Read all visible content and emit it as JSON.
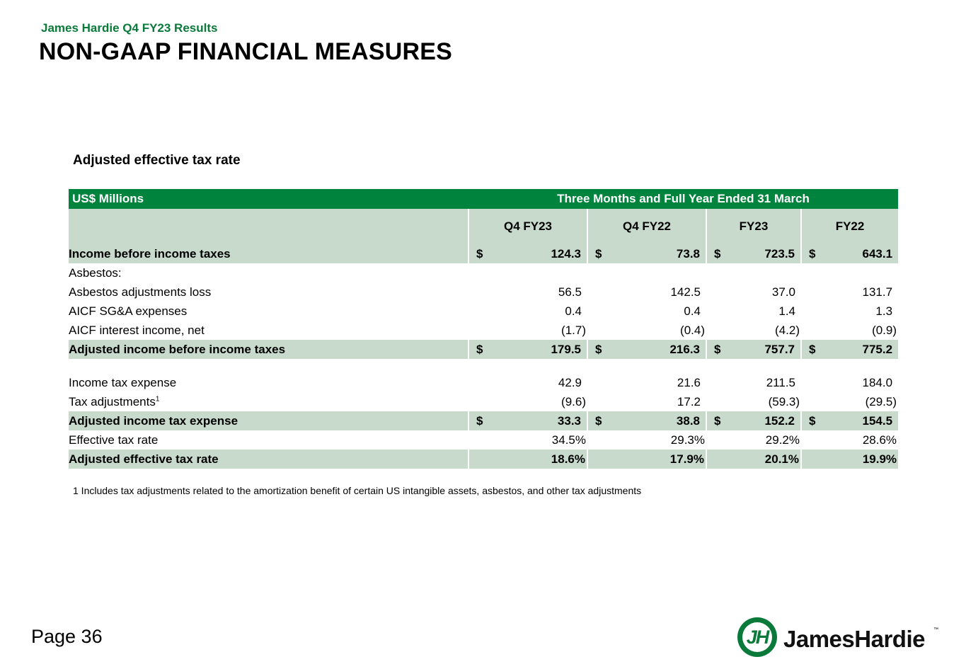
{
  "header": {
    "kicker": "James Hardie Q4 FY23 Results",
    "title": "NON-GAAP FINANCIAL MEASURES"
  },
  "table": {
    "title": "Adjusted effective tax rate",
    "unit_label": "US$ Millions",
    "period_label": "Three Months and Full Year Ended 31 March",
    "columns": [
      "Q4 FY23",
      "Q4 FY22",
      "FY23",
      "FY22"
    ],
    "currency_symbol": "$",
    "rows": {
      "income_before": {
        "label": "Income before income taxes",
        "values": [
          "124.3",
          "73.8",
          "723.5",
          "643.1"
        ]
      },
      "asbestos_header": {
        "label": "Asbestos:"
      },
      "asbestos_loss": {
        "label": "Asbestos adjustments loss",
        "values": [
          "56.5",
          "142.5",
          "37.0",
          "131.7"
        ]
      },
      "aicf_sga": {
        "label": "AICF SG&A expenses",
        "values": [
          "0.4",
          "0.4",
          "1.4",
          "1.3"
        ]
      },
      "aicf_interest": {
        "label": "AICF interest income, net",
        "values": [
          "(1.7)",
          "(0.4)",
          "(4.2)",
          "(0.9)"
        ]
      },
      "adjusted_income_before": {
        "label": "Adjusted income before income taxes",
        "values": [
          "179.5",
          "216.3",
          "757.7",
          "775.2"
        ]
      },
      "income_tax_expense": {
        "label": "Income tax expense",
        "values": [
          "42.9",
          "21.6",
          "211.5",
          "184.0"
        ]
      },
      "tax_adjustments": {
        "label": "Tax adjustments",
        "sup": "1",
        "values": [
          "(9.6)",
          "17.2",
          "(59.3)",
          "(29.5)"
        ]
      },
      "adjusted_tax_expense": {
        "label": "Adjusted income tax expense",
        "values": [
          "33.3",
          "38.8",
          "152.2",
          "154.5"
        ]
      },
      "effective_rate": {
        "label": "Effective tax rate",
        "values": [
          "34.5%",
          "29.3%",
          "29.2%",
          "28.6%"
        ]
      },
      "adjusted_effective_rate": {
        "label": "Adjusted effective tax rate",
        "values": [
          "18.6%",
          "17.9%",
          "20.1%",
          "19.9%"
        ]
      }
    },
    "footnote": "1 Includes tax adjustments related to the amortization benefit of certain US intangible assets, asbestos, and other tax adjustments"
  },
  "footer": {
    "page": "Page 36",
    "logo_text": "JamesHardie",
    "logo_mark": "JH",
    "trademark": "™"
  },
  "colors": {
    "brand_green": "#00843d",
    "band": "#c7dacb"
  }
}
